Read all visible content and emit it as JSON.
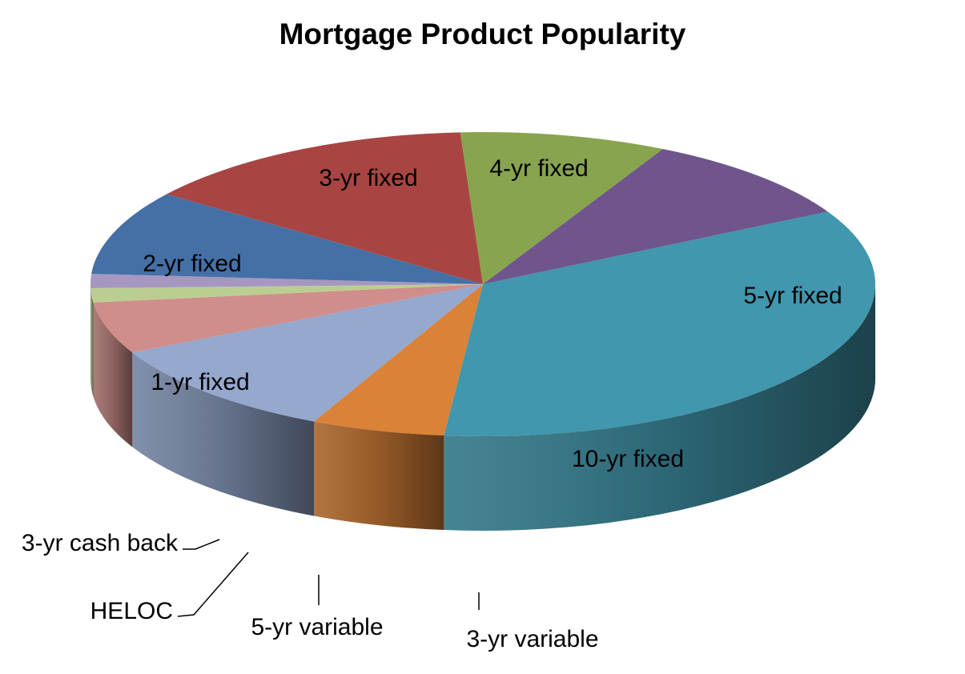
{
  "chart_data": {
    "type": "pie",
    "three_d": true,
    "title": "Mortgage Product Popularity",
    "legend": "none",
    "slices": [
      {
        "label": "5-yr fixed",
        "value": 34.5,
        "color": "#4197AD"
      },
      {
        "label": "10-yr fixed",
        "value": 5.5,
        "color": "#D98238"
      },
      {
        "label": "3-yr variable",
        "value": 10.5,
        "color": "#95A8CE"
      },
      {
        "label": "5-yr variable",
        "value": 5.5,
        "color": "#CF8E8B"
      },
      {
        "label": "HELOC",
        "value": 1.5,
        "color": "#BBCE91"
      },
      {
        "label": "3-yr cash back",
        "value": 1.5,
        "color": "#A697C0"
      },
      {
        "label": "1-yr fixed",
        "value": 9.0,
        "color": "#4470A6"
      },
      {
        "label": "2-yr fixed",
        "value": 14.0,
        "color": "#A84542"
      },
      {
        "label": "3-yr fixed",
        "value": 8.5,
        "color": "#88A44E"
      },
      {
        "label": "4-yr fixed",
        "value": 9.5,
        "color": "#6F558C"
      }
    ]
  }
}
